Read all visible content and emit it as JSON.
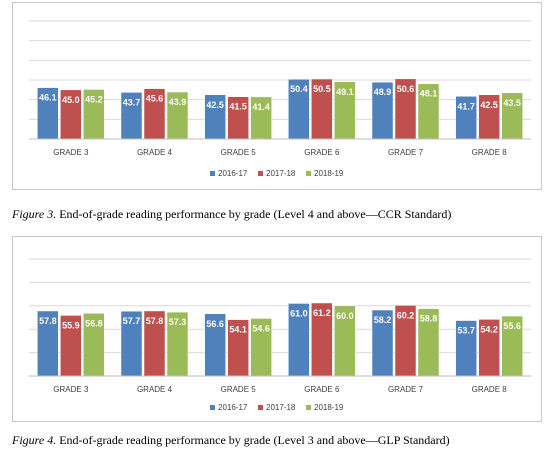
{
  "figures": [
    {
      "caption_label": "Figure 3.",
      "caption_text": " End-of-grade reading performance by grade (Level 4 and above—CCR Standard)"
    },
    {
      "caption_label": "Figure 4.",
      "caption_text": " End-of-grade reading performance by grade (Level 3 and above—GLP Standard)"
    }
  ],
  "chart_data": [
    {
      "type": "bar",
      "categories": [
        "GRADE 3",
        "GRADE 4",
        "GRADE 5",
        "GRADE 6",
        "GRADE 7",
        "GRADE 8"
      ],
      "series": [
        {
          "name": "2016-17",
          "values": [
            46.1,
            43.7,
            42.5,
            50.4,
            48.9,
            41.7
          ],
          "color": "#4f81bd"
        },
        {
          "name": "2017-18",
          "values": [
            45.0,
            45.6,
            41.5,
            50.5,
            50.6,
            42.5
          ],
          "color": "#c0504d"
        },
        {
          "name": "2018-19",
          "values": [
            45.2,
            43.9,
            41.4,
            49.1,
            48.1,
            43.5
          ],
          "color": "#9bbb59"
        }
      ],
      "ylim": [
        0,
        100
      ],
      "y_visible_range": [
        20,
        80
      ],
      "gridlines": true,
      "legend_position": "bottom",
      "data_labels": true
    },
    {
      "type": "bar",
      "categories": [
        "GRADE 3",
        "GRADE 4",
        "GRADE 5",
        "GRADE 6",
        "GRADE 7",
        "GRADE 8"
      ],
      "series": [
        {
          "name": "2016-17",
          "values": [
            57.8,
            57.7,
            56.6,
            61.0,
            58.2,
            53.7
          ],
          "color": "#4f81bd"
        },
        {
          "name": "2017-18",
          "values": [
            55.9,
            57.8,
            54.1,
            61.2,
            60.2,
            54.2
          ],
          "color": "#c0504d"
        },
        {
          "name": "2018-19",
          "values": [
            56.8,
            57.3,
            54.6,
            60.0,
            58.8,
            55.6
          ],
          "color": "#9bbb59"
        }
      ],
      "ylim": [
        0,
        100
      ],
      "y_visible_range": [
        30,
        80
      ],
      "gridlines": true,
      "legend_position": "bottom",
      "data_labels": true
    }
  ]
}
